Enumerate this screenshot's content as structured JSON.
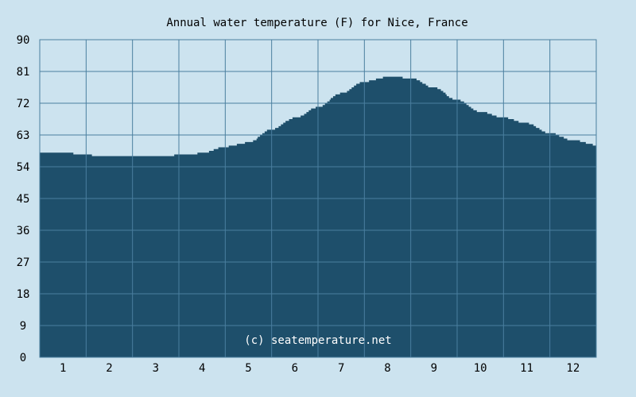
{
  "chart_data": {
    "type": "area",
    "title": "Annual water temperature (F) for Nice, France",
    "xlabel": "",
    "ylabel": "",
    "categories": [
      "1",
      "2",
      "3",
      "4",
      "5",
      "6",
      "7",
      "8",
      "9",
      "10",
      "11",
      "12"
    ],
    "yticks": [
      "0",
      "9",
      "18",
      "27",
      "36",
      "45",
      "54",
      "63",
      "72",
      "81",
      "90"
    ],
    "ylim": [
      0,
      90
    ],
    "xlim": [
      0,
      12
    ],
    "grid": true,
    "legend": "none",
    "series": [
      {
        "x": [
          0,
          0.5,
          1,
          1.5,
          2,
          2.5,
          3,
          3.5,
          4,
          4.5,
          5,
          5.5,
          6,
          6.5,
          7,
          7.5,
          8,
          8.5,
          9,
          9.5,
          10,
          10.5,
          11,
          11.5,
          12
        ],
        "values": [
          57.9,
          58.1,
          57.3,
          57.0,
          56.8,
          56.8,
          57.3,
          57.8,
          59.7,
          60.8,
          64.6,
          67.8,
          70.8,
          74.8,
          78.1,
          79.4,
          79.2,
          76.4,
          72.9,
          69.6,
          67.9,
          66.3,
          63.5,
          61.5,
          60.2
        ],
        "color": "#1e4f6b"
      }
    ],
    "annotations": [
      "(c) seatemperature.net"
    ],
    "colors": {
      "background": "#cce3ef",
      "fill": "#1e4f6b",
      "grid": "#4a7f9f",
      "text": "#000000",
      "watermark": "#ffffff"
    }
  }
}
